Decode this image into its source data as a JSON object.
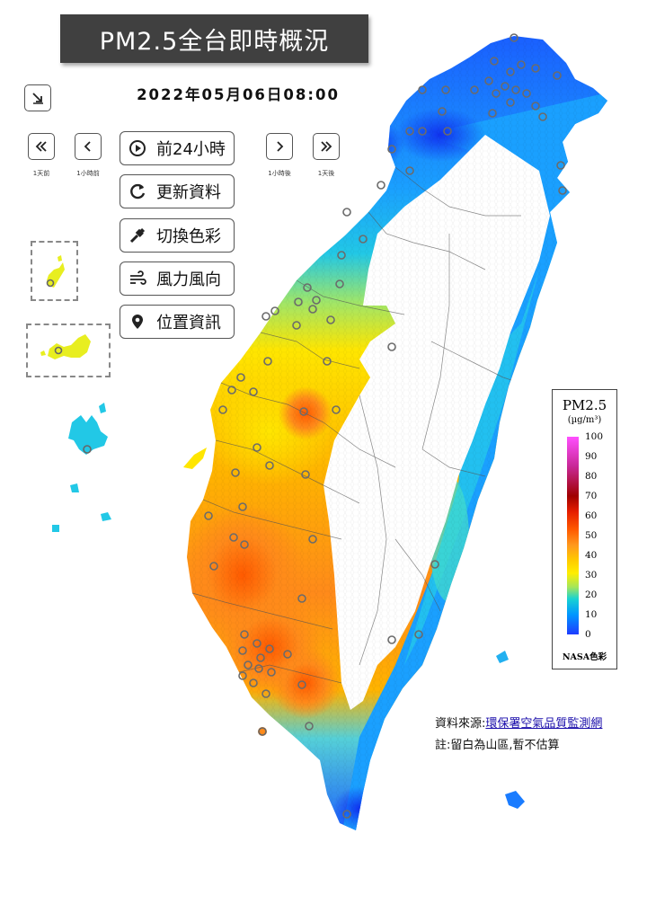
{
  "title": "PM2.5全台即時概況",
  "datetime": "2022年05月06日08:00",
  "nav": {
    "day_back_caption": "1天前",
    "hour_back_caption": "1小時前",
    "hour_forward_caption": "1小時後",
    "day_forward_caption": "1天後"
  },
  "menu": {
    "prev24": "前24小時",
    "refresh": "更新資料",
    "color": "切換色彩",
    "wind": "風力風向",
    "location": "位置資訊"
  },
  "legend": {
    "title": "PM2.5",
    "unit": "(µg/m³)",
    "ticks": [
      "100",
      "90",
      "80",
      "70",
      "60",
      "50",
      "40",
      "30",
      "20",
      "10",
      "0"
    ],
    "colorscheme": "NASA色彩"
  },
  "source": {
    "label": "資料來源:",
    "link": "環保署空氣品質監測網"
  },
  "note": "註:留白為山區,暫不估算",
  "colors": {
    "title_bg": "#404040",
    "deep_blue": "#1e3cff",
    "blue": "#0096ff",
    "cyan": "#19d2d2",
    "yellow": "#ffee00",
    "orange": "#ff9a1e",
    "red_orange": "#ff5a00"
  }
}
